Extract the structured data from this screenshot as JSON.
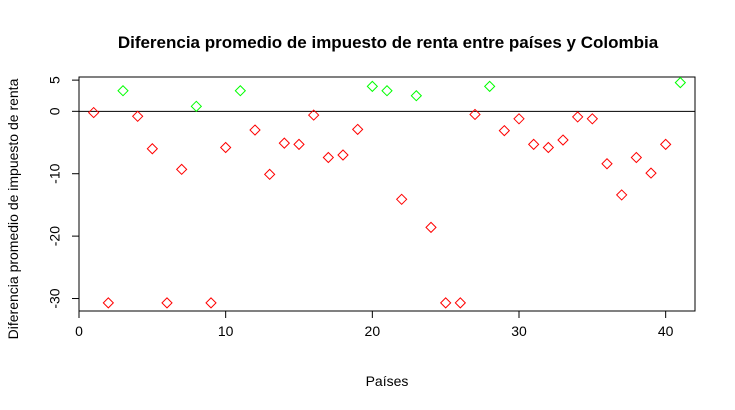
{
  "chart_data": {
    "type": "scatter",
    "title": "Diferencia promedio de impuesto de renta entre países y Colombia",
    "xlabel": "Países",
    "ylabel": "Diferencia promedio de impuesto de renta",
    "xlim": [
      0,
      42
    ],
    "ylim": [
      -32,
      5.5
    ],
    "x_ticks": [
      0,
      10,
      20,
      30,
      40
    ],
    "y_ticks": [
      5,
      0,
      -10,
      -20,
      -30
    ],
    "reference_line": 0,
    "grid": false,
    "marker": "diamond-open",
    "colors": {
      "positive": "#00ff00",
      "negative": "#ff0000",
      "axis": "#000000"
    },
    "x": [
      1,
      2,
      3,
      4,
      5,
      6,
      7,
      8,
      9,
      10,
      11,
      12,
      13,
      14,
      15,
      16,
      17,
      18,
      19,
      20,
      21,
      22,
      23,
      24,
      25,
      26,
      27,
      28,
      29,
      30,
      31,
      32,
      33,
      34,
      35,
      36,
      37,
      38,
      39,
      40,
      41
    ],
    "y": [
      -0.2,
      -30.7,
      3.3,
      -0.8,
      -6.0,
      -30.7,
      -9.3,
      0.8,
      -30.7,
      -5.8,
      3.3,
      -3.0,
      -10.1,
      -5.1,
      -5.3,
      -0.6,
      -7.4,
      -7.0,
      -2.9,
      4.0,
      3.3,
      -14.1,
      2.5,
      -18.6,
      -30.7,
      -30.7,
      -0.5,
      4.0,
      -3.1,
      -1.2,
      -5.3,
      -5.8,
      -4.6,
      -0.9,
      -1.2,
      -8.4,
      -13.4,
      -7.4,
      -9.9,
      -5.3,
      4.6
    ]
  }
}
